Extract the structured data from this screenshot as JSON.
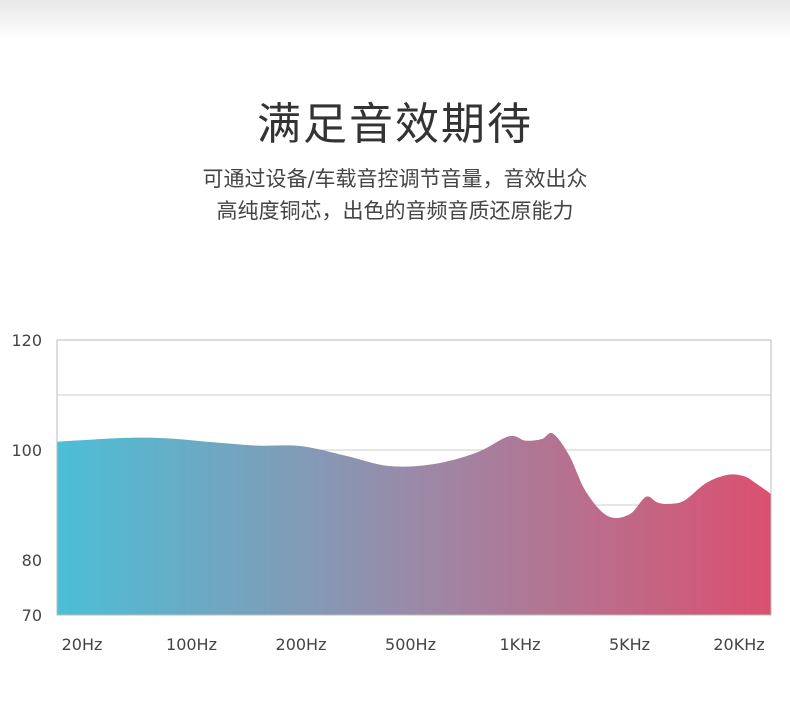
{
  "header": {
    "title": "满足音效期待",
    "subtitle_line1": "可通过设备/车载音控调节音量，音效出众",
    "subtitle_line2": "高纯度铜芯，出色的音频音质还原能力"
  },
  "chart_data": {
    "type": "area",
    "x_categories": [
      "20Hz",
      "100Hz",
      "200Hz",
      "500Hz",
      "1KHz",
      "5KHz",
      "20KHz"
    ],
    "y_ticks": [
      120,
      100,
      80,
      70
    ],
    "ylim": [
      70,
      120
    ],
    "grid": true,
    "gradient_colors": [
      "#4bbfd6",
      "#9a8aa8",
      "#db506f"
    ],
    "series": [
      {
        "x": [
          0,
          0.4,
          0.8,
          1.2,
          1.6,
          2.0,
          2.4,
          2.8,
          3.2,
          3.6,
          3.9,
          4.05,
          4.2,
          4.3,
          4.45,
          4.6,
          4.8,
          5.0,
          5.15,
          5.25,
          5.35,
          5.5,
          5.7,
          5.9,
          6.05,
          6.15,
          6.25
        ],
        "values": [
          101.5,
          102.2,
          102.1,
          101.4,
          100.8,
          100.7,
          99.0,
          97.1,
          97.4,
          99.5,
          102.5,
          101.7,
          102.0,
          103.0,
          99.0,
          92.5,
          88.0,
          88.3,
          91.5,
          90.5,
          90.2,
          90.8,
          94.0,
          95.5,
          95.2,
          94.0,
          92.0
        ]
      }
    ]
  }
}
